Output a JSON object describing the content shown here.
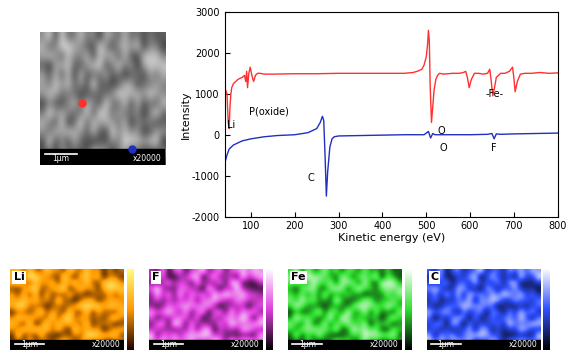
{
  "sem_image": {
    "scale_bar": "1μm",
    "magnification": "x20000",
    "markers": [
      "#ff3030",
      "#2030c0"
    ]
  },
  "chart_data": {
    "type": "line",
    "xlabel": "Kinetic energy (eV)",
    "ylabel": "Intensity",
    "xlim": [
      40,
      800
    ],
    "xticks": [
      100,
      200,
      300,
      400,
      500,
      600,
      700,
      800
    ],
    "ylim": [
      -2000,
      3000
    ],
    "yticks": [
      -2000,
      -1000,
      0,
      1000,
      2000,
      3000
    ],
    "grid": false,
    "annotations": [
      "Li",
      "P(oxide)",
      "O",
      "-Fe-",
      "C",
      "O",
      "F"
    ],
    "series": [
      {
        "color": "#ff3030",
        "x": [
          40,
          45,
          48,
          50,
          52,
          54,
          56,
          60,
          65,
          70,
          75,
          80,
          85,
          88,
          90,
          92,
          95,
          98,
          100,
          103,
          106,
          110,
          115,
          120,
          130,
          150,
          200,
          250,
          300,
          350,
          400,
          450,
          470,
          480,
          490,
          495,
          500,
          503,
          505,
          507,
          509,
          512,
          515,
          518,
          522,
          526,
          530,
          540,
          560,
          575,
          585,
          590,
          594,
          598,
          603,
          610,
          620,
          630,
          640,
          645,
          648,
          652,
          656,
          660,
          670,
          680,
          690,
          697,
          700,
          703,
          708,
          715,
          725,
          740,
          760,
          780,
          800
        ],
        "values": [
          1150,
          1000,
          300,
          150,
          700,
          1000,
          1150,
          1250,
          1300,
          1350,
          1380,
          1400,
          1450,
          1300,
          1550,
          1150,
          1500,
          1650,
          1550,
          1400,
          1300,
          1450,
          1500,
          1500,
          1480,
          1480,
          1490,
          1490,
          1500,
          1500,
          1500,
          1500,
          1520,
          1550,
          1600,
          1700,
          1900,
          2200,
          2550,
          2300,
          1200,
          300,
          700,
          1100,
          1350,
          1450,
          1500,
          1480,
          1500,
          1500,
          1520,
          1550,
          1400,
          1150,
          1350,
          1500,
          1500,
          1480,
          1500,
          1600,
          1350,
          950,
          1150,
          1400,
          1500,
          1500,
          1550,
          1650,
          1400,
          1050,
          1300,
          1480,
          1500,
          1500,
          1520,
          1500,
          1510
        ]
      },
      {
        "color": "#2030c0",
        "x": [
          40,
          45,
          50,
          60,
          80,
          100,
          130,
          160,
          200,
          230,
          250,
          258,
          263,
          266,
          269,
          272,
          275,
          280,
          285,
          290,
          300,
          350,
          400,
          450,
          495,
          505,
          510,
          515,
          520,
          540,
          600,
          640,
          650,
          655,
          660,
          670,
          700,
          750,
          800
        ],
        "values": [
          -700,
          -500,
          -350,
          -250,
          -150,
          -100,
          -50,
          -20,
          0,
          50,
          150,
          300,
          450,
          350,
          -500,
          -1500,
          -900,
          -300,
          -100,
          -50,
          -30,
          -20,
          -10,
          0,
          0,
          80,
          -80,
          30,
          0,
          0,
          0,
          10,
          30,
          -100,
          20,
          10,
          20,
          30,
          40
        ]
      }
    ]
  },
  "maps": [
    {
      "label": "Li",
      "color": "#ff9a00",
      "scale_bar": "1μm",
      "magnification": "x20000"
    },
    {
      "label": "F",
      "color": "#e040e0",
      "scale_bar": "1μm",
      "magnification": "x20000"
    },
    {
      "label": "Fe",
      "color": "#30e030",
      "scale_bar": "1μm",
      "magnification": "x20000"
    },
    {
      "label": "C",
      "color": "#3050ff",
      "scale_bar": "1μm",
      "magnification": "x20000"
    }
  ]
}
